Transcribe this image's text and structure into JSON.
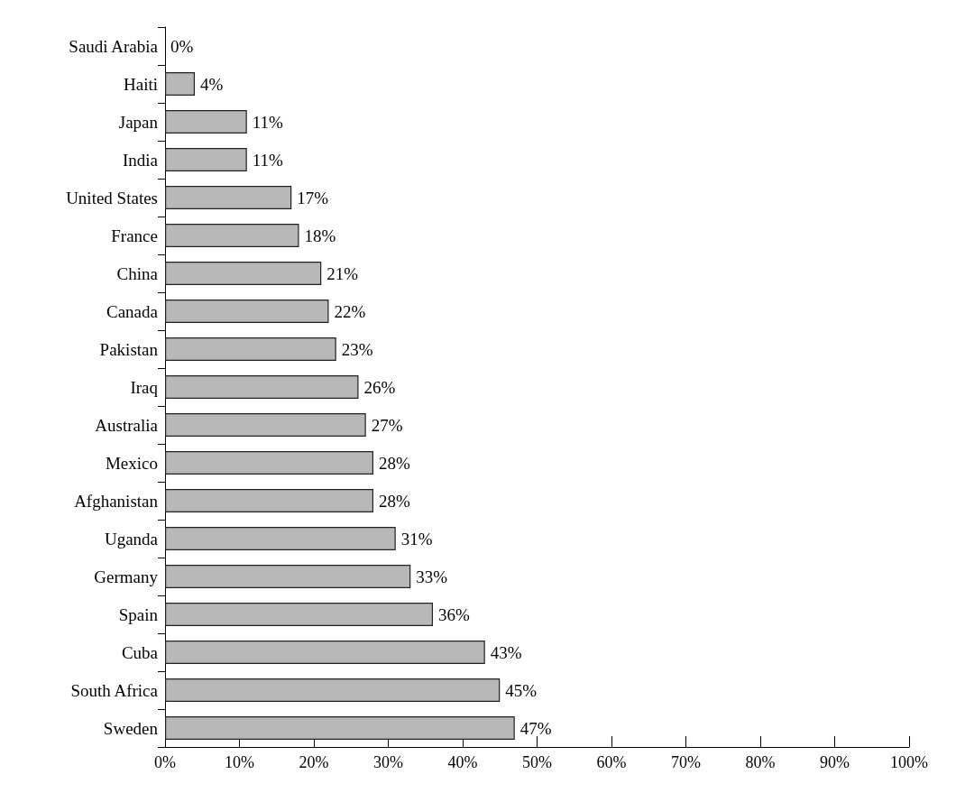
{
  "chart_data": {
    "type": "bar",
    "orientation": "horizontal",
    "categories": [
      "Saudi Arabia",
      "Haiti",
      "Japan",
      "India",
      "United States",
      "France",
      "China",
      "Canada",
      "Pakistan",
      "Iraq",
      "Australia",
      "Mexico",
      "Afghanistan",
      "Uganda",
      "Germany",
      "Spain",
      "Cuba",
      "South Africa",
      "Sweden"
    ],
    "values": [
      0,
      4,
      11,
      11,
      17,
      18,
      21,
      22,
      23,
      26,
      27,
      28,
      28,
      31,
      33,
      36,
      43,
      45,
      47
    ],
    "value_labels": [
      "0%",
      "4%",
      "11%",
      "11%",
      "17%",
      "18%",
      "21%",
      "22%",
      "23%",
      "26%",
      "27%",
      "28%",
      "28%",
      "31%",
      "33%",
      "36%",
      "43%",
      "45%",
      "47%"
    ],
    "color": "#b8b8b8",
    "xlim": [
      0,
      100
    ],
    "xticks": [
      {
        "value": 0,
        "label": "0%"
      },
      {
        "value": 10,
        "label": "10%"
      },
      {
        "value": 20,
        "label": "20%"
      },
      {
        "value": 30,
        "label": "30%"
      },
      {
        "value": 40,
        "label": "40%"
      },
      {
        "value": 50,
        "label": "50%"
      },
      {
        "value": 60,
        "label": "60%"
      },
      {
        "value": 70,
        "label": "70%"
      },
      {
        "value": 80,
        "label": "80%"
      },
      {
        "value": 90,
        "label": "90%"
      },
      {
        "value": 100,
        "label": "100%"
      }
    ],
    "grid": false
  }
}
